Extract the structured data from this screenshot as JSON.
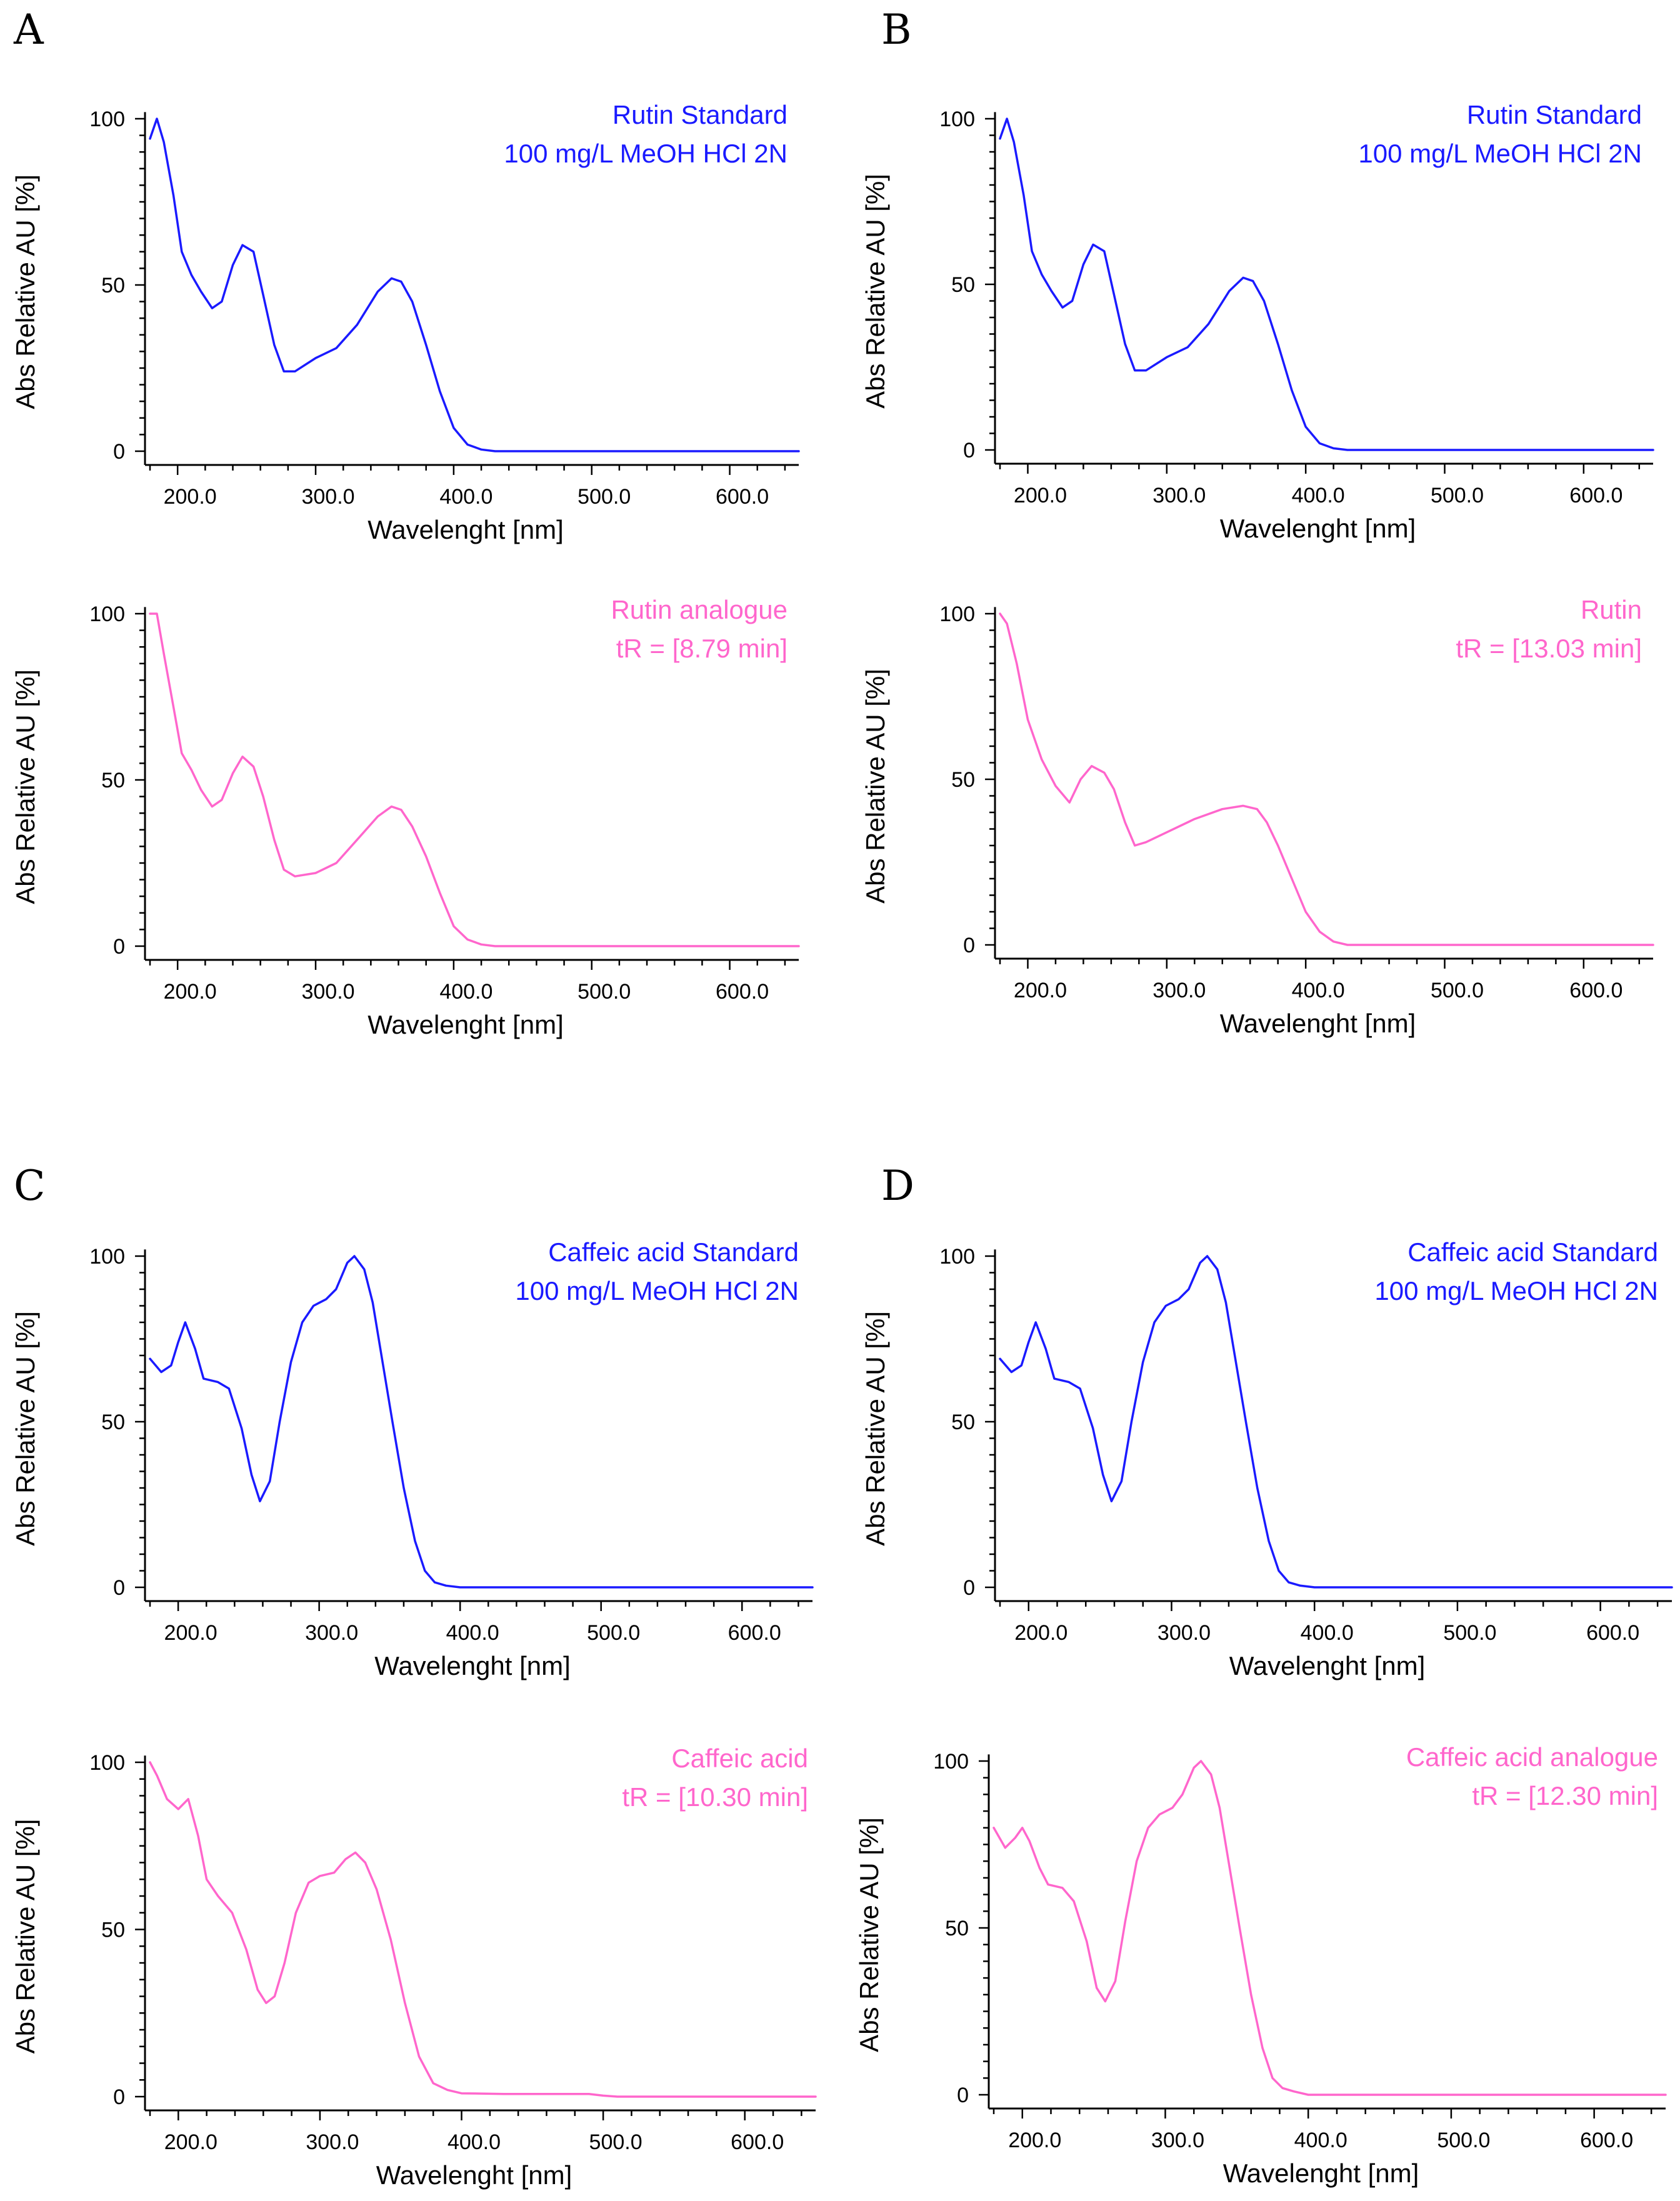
{
  "panel_letters": [
    "A",
    "B",
    "C",
    "D"
  ],
  "chart_data": [
    {
      "panel": "A",
      "type": "line",
      "legend": [
        "Rutin Standard",
        "100 mg/L MeOH HCl 2N"
      ],
      "color": "#1a1aff",
      "xlabel": "Wavelenght [nm]",
      "ylabel": "Abs Relative AU [%]",
      "xlim": [
        180,
        650
      ],
      "ylim": [
        0,
        100
      ],
      "xticks": [
        "200.0",
        "300.0",
        "400.0",
        "500.0",
        "600.0"
      ],
      "yticks": [
        "0",
        "50",
        "100"
      ],
      "x": [
        180,
        185,
        190,
        197,
        203,
        210,
        217,
        225,
        232,
        240,
        247,
        255,
        262,
        270,
        277,
        285,
        300,
        315,
        330,
        345,
        355,
        362,
        370,
        380,
        390,
        400,
        410,
        420,
        430,
        500,
        650
      ],
      "y": [
        94,
        100,
        93,
        77,
        60,
        53,
        48,
        43,
        45,
        56,
        62,
        60,
        47,
        32,
        24,
        24,
        28,
        31,
        38,
        48,
        52,
        51,
        45,
        32,
        18,
        7,
        2,
        0.5,
        0,
        0,
        0
      ]
    },
    {
      "panel": "A",
      "type": "line",
      "legend": [
        "Rutin analogue",
        "tR = [8.79 min]"
      ],
      "color": "#ff66cc",
      "xlabel": "Wavelenght [nm]",
      "ylabel": "Abs Relative AU [%]",
      "xlim": [
        180,
        650
      ],
      "ylim": [
        0,
        100
      ],
      "xticks": [
        "200.0",
        "300.0",
        "400.0",
        "500.0",
        "600.0"
      ],
      "yticks": [
        "0",
        "50",
        "100"
      ],
      "x": [
        180,
        185,
        190,
        197,
        203,
        210,
        217,
        225,
        232,
        240,
        247,
        255,
        262,
        270,
        277,
        285,
        300,
        315,
        330,
        345,
        355,
        362,
        370,
        380,
        390,
        400,
        410,
        420,
        430,
        500,
        650
      ],
      "y": [
        100,
        100,
        88,
        72,
        58,
        53,
        47,
        42,
        44,
        52,
        57,
        54,
        45,
        32,
        23,
        21,
        22,
        25,
        32,
        39,
        42,
        41,
        36,
        27,
        16,
        6,
        2,
        0.5,
        0,
        0,
        0
      ]
    },
    {
      "panel": "B",
      "type": "line",
      "legend": [
        "Rutin Standard",
        "100 mg/L MeOH HCl 2N"
      ],
      "color": "#1a1aff",
      "xlabel": "Wavelenght [nm]",
      "ylabel": "Abs Relative AU [%]",
      "xlim": [
        180,
        650
      ],
      "ylim": [
        0,
        100
      ],
      "xticks": [
        "200.0",
        "300.0",
        "400.0",
        "500.0",
        "600.0"
      ],
      "yticks": [
        "0",
        "50",
        "100"
      ],
      "x": [
        180,
        185,
        190,
        197,
        203,
        210,
        217,
        225,
        232,
        240,
        247,
        255,
        262,
        270,
        277,
        285,
        300,
        315,
        330,
        345,
        355,
        362,
        370,
        380,
        390,
        400,
        410,
        420,
        430,
        500,
        650
      ],
      "y": [
        94,
        100,
        93,
        77,
        60,
        53,
        48,
        43,
        45,
        56,
        62,
        60,
        47,
        32,
        24,
        24,
        28,
        31,
        38,
        48,
        52,
        51,
        45,
        32,
        18,
        7,
        2,
        0.5,
        0,
        0,
        0
      ]
    },
    {
      "panel": "B",
      "type": "line",
      "legend": [
        "Rutin",
        "tR = [13.03 min]"
      ],
      "color": "#ff66cc",
      "xlabel": "Wavelenght [nm]",
      "ylabel": "Abs Relative AU [%]",
      "xlim": [
        180,
        650
      ],
      "ylim": [
        0,
        100
      ],
      "xticks": [
        "200.0",
        "300.0",
        "400.0",
        "500.0",
        "600.0"
      ],
      "yticks": [
        "0",
        "50",
        "100"
      ],
      "x": [
        180,
        185,
        192,
        200,
        210,
        220,
        230,
        238,
        246,
        255,
        262,
        270,
        277,
        285,
        300,
        320,
        340,
        355,
        365,
        372,
        380,
        390,
        400,
        410,
        420,
        430,
        500,
        650
      ],
      "y": [
        100,
        97,
        85,
        68,
        56,
        48,
        43,
        50,
        54,
        52,
        47,
        37,
        30,
        31,
        34,
        38,
        41,
        42,
        41,
        37,
        30,
        20,
        10,
        4,
        1,
        0,
        0,
        0
      ]
    },
    {
      "panel": "C",
      "type": "line",
      "legend": [
        "Caffeic acid Standard",
        "100 mg/L MeOH HCl 2N"
      ],
      "color": "#1a1aff",
      "xlabel": "Wavelenght [nm]",
      "ylabel": "Abs Relative AU [%]",
      "xlim": [
        180,
        650
      ],
      "ylim": [
        0,
        100
      ],
      "xticks": [
        "200.0",
        "300.0",
        "400.0",
        "500.0",
        "600.0"
      ],
      "yticks": [
        "0",
        "50",
        "100"
      ],
      "x": [
        180,
        188,
        195,
        200,
        205,
        212,
        218,
        228,
        236,
        245,
        252,
        258,
        265,
        272,
        280,
        288,
        296,
        305,
        312,
        320,
        325,
        332,
        338,
        345,
        352,
        360,
        368,
        375,
        382,
        390,
        400,
        450,
        650
      ],
      "y": [
        69,
        65,
        67,
        74,
        80,
        72,
        63,
        62,
        60,
        48,
        34,
        26,
        32,
        50,
        68,
        80,
        85,
        87,
        90,
        98,
        100,
        96,
        86,
        68,
        50,
        30,
        14,
        5,
        1.5,
        0.5,
        0,
        0,
        0
      ]
    },
    {
      "panel": "C",
      "type": "line",
      "legend": [
        "Caffeic acid",
        "tR = [10.30 min]"
      ],
      "color": "#ff66cc",
      "xlabel": "Wavelenght [nm]",
      "ylabel": "Abs Relative AU [%]",
      "xlim": [
        180,
        650
      ],
      "ylim": [
        0,
        100
      ],
      "xticks": [
        "200.0",
        "300.0",
        "400.0",
        "500.0",
        "600.0"
      ],
      "yticks": [
        "0",
        "50",
        "100"
      ],
      "x": [
        180,
        185,
        192,
        200,
        207,
        214,
        220,
        228,
        238,
        248,
        256,
        262,
        268,
        275,
        283,
        292,
        300,
        310,
        318,
        325,
        332,
        340,
        350,
        360,
        370,
        380,
        390,
        400,
        430,
        490,
        500,
        510,
        650
      ],
      "y": [
        100,
        96,
        89,
        86,
        89,
        78,
        65,
        60,
        55,
        44,
        32,
        28,
        30,
        40,
        55,
        64,
        66,
        67,
        71,
        73,
        70,
        62,
        47,
        28,
        12,
        4,
        2,
        1,
        0.8,
        0.8,
        0.3,
        0,
        0
      ]
    },
    {
      "panel": "D",
      "type": "line",
      "legend": [
        "Caffeic acid Standard",
        "100 mg/L MeOH HCl 2N"
      ],
      "color": "#1a1aff",
      "xlabel": "Wavelenght [nm]",
      "ylabel": "Abs Relative AU [%]",
      "xlim": [
        180,
        650
      ],
      "ylim": [
        0,
        100
      ],
      "xticks": [
        "200.0",
        "300.0",
        "400.0",
        "500.0",
        "600.0"
      ],
      "yticks": [
        "0",
        "50",
        "100"
      ],
      "x": [
        180,
        188,
        195,
        200,
        205,
        212,
        218,
        228,
        236,
        245,
        252,
        258,
        265,
        272,
        280,
        288,
        296,
        305,
        312,
        320,
        325,
        332,
        338,
        345,
        352,
        360,
        368,
        375,
        382,
        390,
        400,
        450,
        650
      ],
      "y": [
        69,
        65,
        67,
        74,
        80,
        72,
        63,
        62,
        60,
        48,
        34,
        26,
        32,
        50,
        68,
        80,
        85,
        87,
        90,
        98,
        100,
        96,
        86,
        68,
        50,
        30,
        14,
        5,
        1.5,
        0.5,
        0,
        0,
        0
      ]
    },
    {
      "panel": "D",
      "type": "line",
      "legend": [
        "Caffeic acid analogue",
        "tR = [12.30 min]"
      ],
      "color": "#ff66cc",
      "xlabel": "Wavelenght [nm]",
      "ylabel": "Abs Relative AU [%]",
      "xlim": [
        180,
        650
      ],
      "ylim": [
        0,
        100
      ],
      "xticks": [
        "200.0",
        "300.0",
        "400.0",
        "500.0",
        "600.0"
      ],
      "yticks": [
        "0",
        "50",
        "100"
      ],
      "x": [
        180,
        188,
        195,
        200,
        205,
        212,
        218,
        228,
        236,
        245,
        252,
        258,
        265,
        272,
        280,
        288,
        296,
        305,
        312,
        320,
        325,
        332,
        338,
        345,
        352,
        360,
        368,
        375,
        382,
        390,
        400,
        450,
        650
      ],
      "y": [
        80,
        74,
        77,
        80,
        76,
        68,
        63,
        62,
        58,
        46,
        32,
        28,
        34,
        52,
        70,
        80,
        84,
        86,
        90,
        98,
        100,
        96,
        86,
        68,
        50,
        30,
        14,
        5,
        2,
        1,
        0,
        0,
        0
      ]
    }
  ]
}
